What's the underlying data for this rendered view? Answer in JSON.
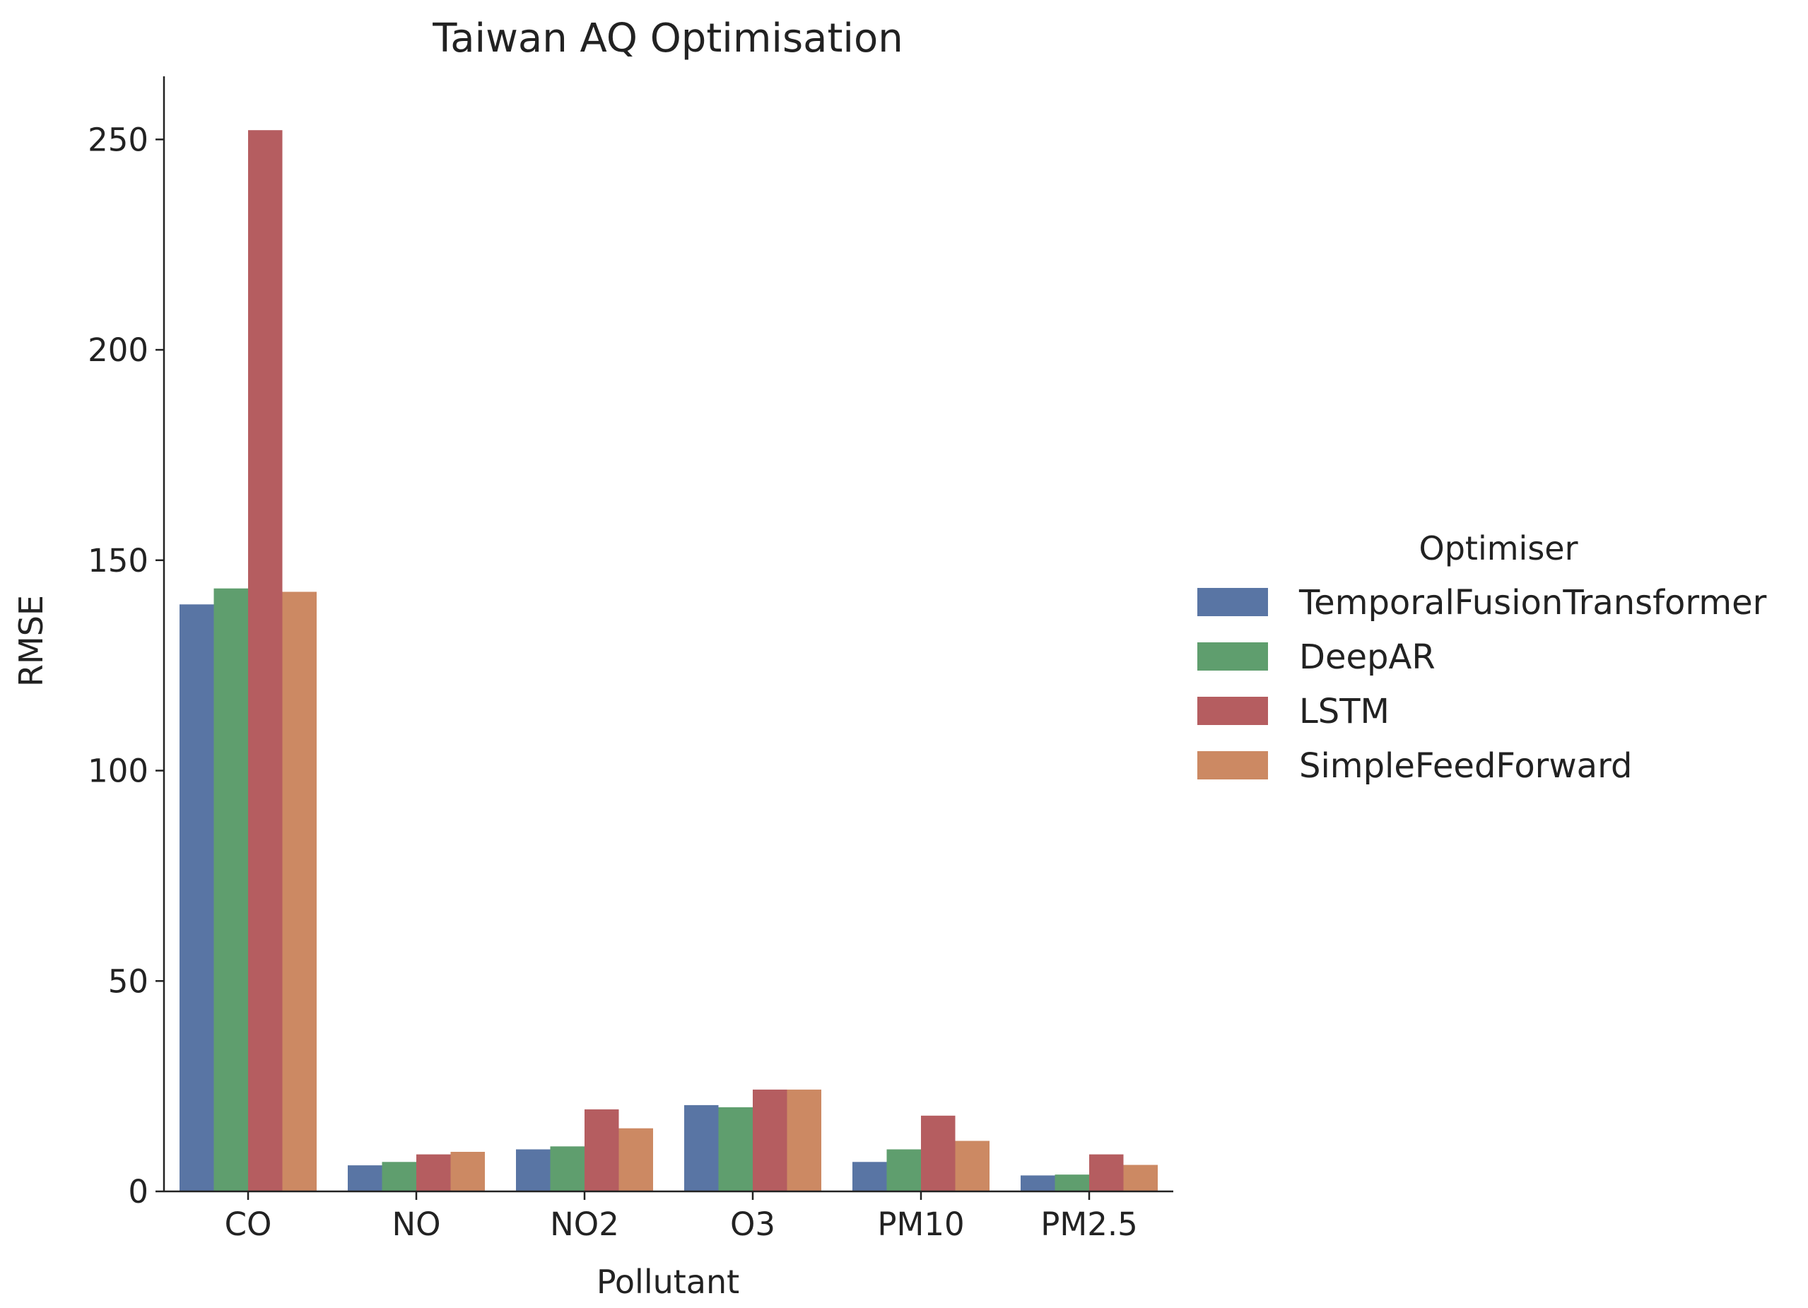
{
  "chart_data": {
    "type": "bar",
    "title": "Taiwan AQ Optimisation",
    "xlabel": "Pollutant",
    "ylabel": "RMSE",
    "categories": [
      "CO",
      "NO",
      "NO2",
      "O3",
      "PM10",
      "PM2.5"
    ],
    "ylim": [
      0,
      265
    ],
    "yticks": [
      0,
      50,
      100,
      150,
      200,
      250
    ],
    "grid": false,
    "legend": {
      "title": "Optimiser",
      "position": "right"
    },
    "series": [
      {
        "name": "TemporalFusionTransformer",
        "color": "#5975a4",
        "values": [
          139.5,
          6.2,
          10.0,
          20.5,
          7.0,
          3.8
        ]
      },
      {
        "name": "DeepAR",
        "color": "#5f9e6e",
        "values": [
          143.3,
          7.0,
          10.7,
          20.0,
          10.0,
          4.0
        ]
      },
      {
        "name": "LSTM",
        "color": "#b55d60",
        "values": [
          252.2,
          8.8,
          19.5,
          24.2,
          18.0,
          8.8
        ]
      },
      {
        "name": "SimpleFeedForward",
        "color": "#cc8963",
        "values": [
          142.5,
          9.4,
          15.0,
          24.2,
          12.0,
          6.3
        ]
      }
    ]
  }
}
